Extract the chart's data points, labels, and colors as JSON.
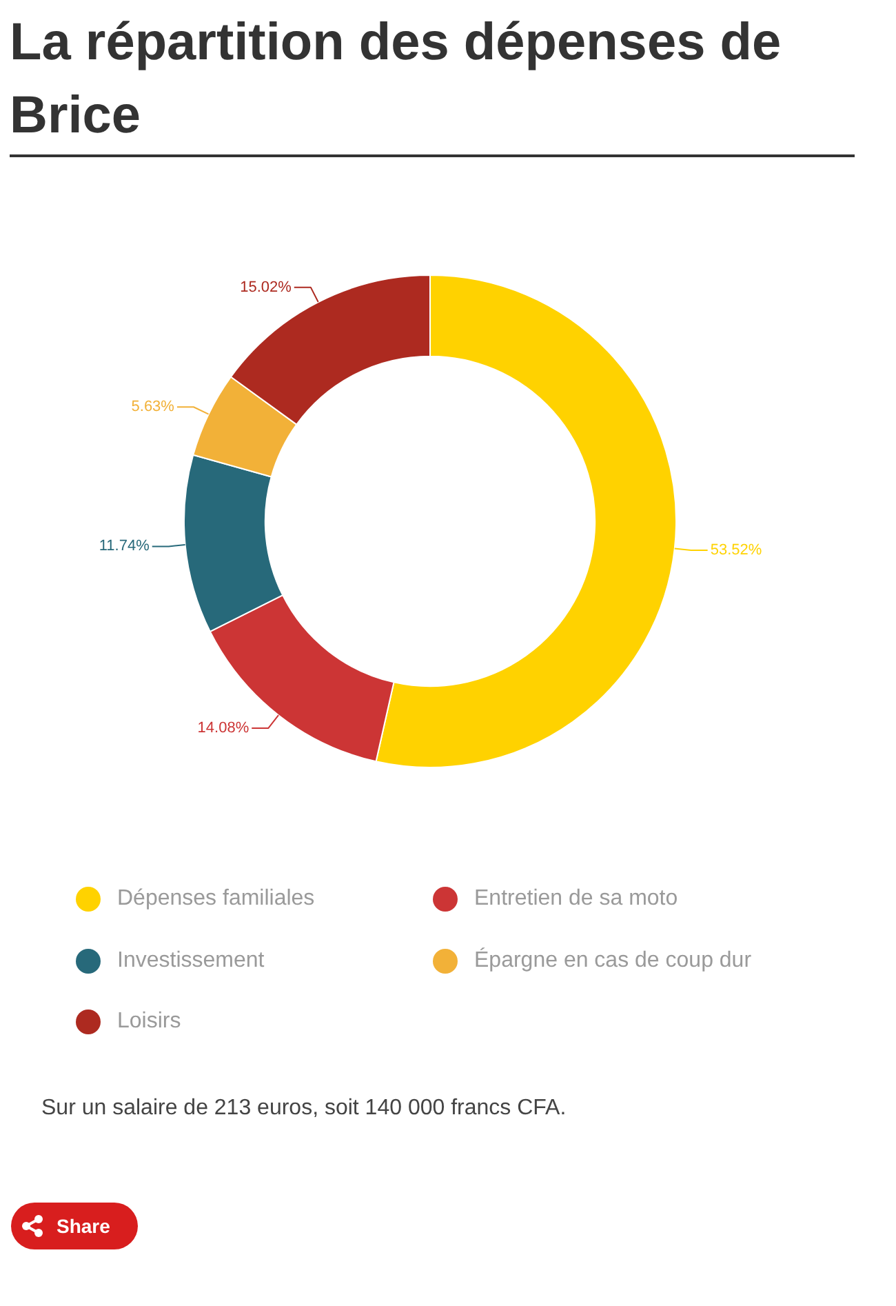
{
  "chart_data": {
    "type": "donut",
    "title": "La répartition des dépenses de Brice",
    "categories": [
      "Dépenses familiales",
      "Entretien de sa moto",
      "Investissement",
      "Épargne en cas de coup dur",
      "Loisirs"
    ],
    "values": [
      53.52,
      14.08,
      11.74,
      5.63,
      15.02
    ],
    "colors": [
      "#ffd200",
      "#cc3535",
      "#27697a",
      "#f2b138",
      "#ad2a20"
    ],
    "value_labels": [
      "53.52%",
      "14.08%",
      "11.74%",
      "5.63%",
      "15.02%"
    ],
    "legend": "bottom",
    "annotations": [
      "Sur un salaire de 213 euros, soit 140 000 francs CFA.",
      "Share"
    ]
  }
}
